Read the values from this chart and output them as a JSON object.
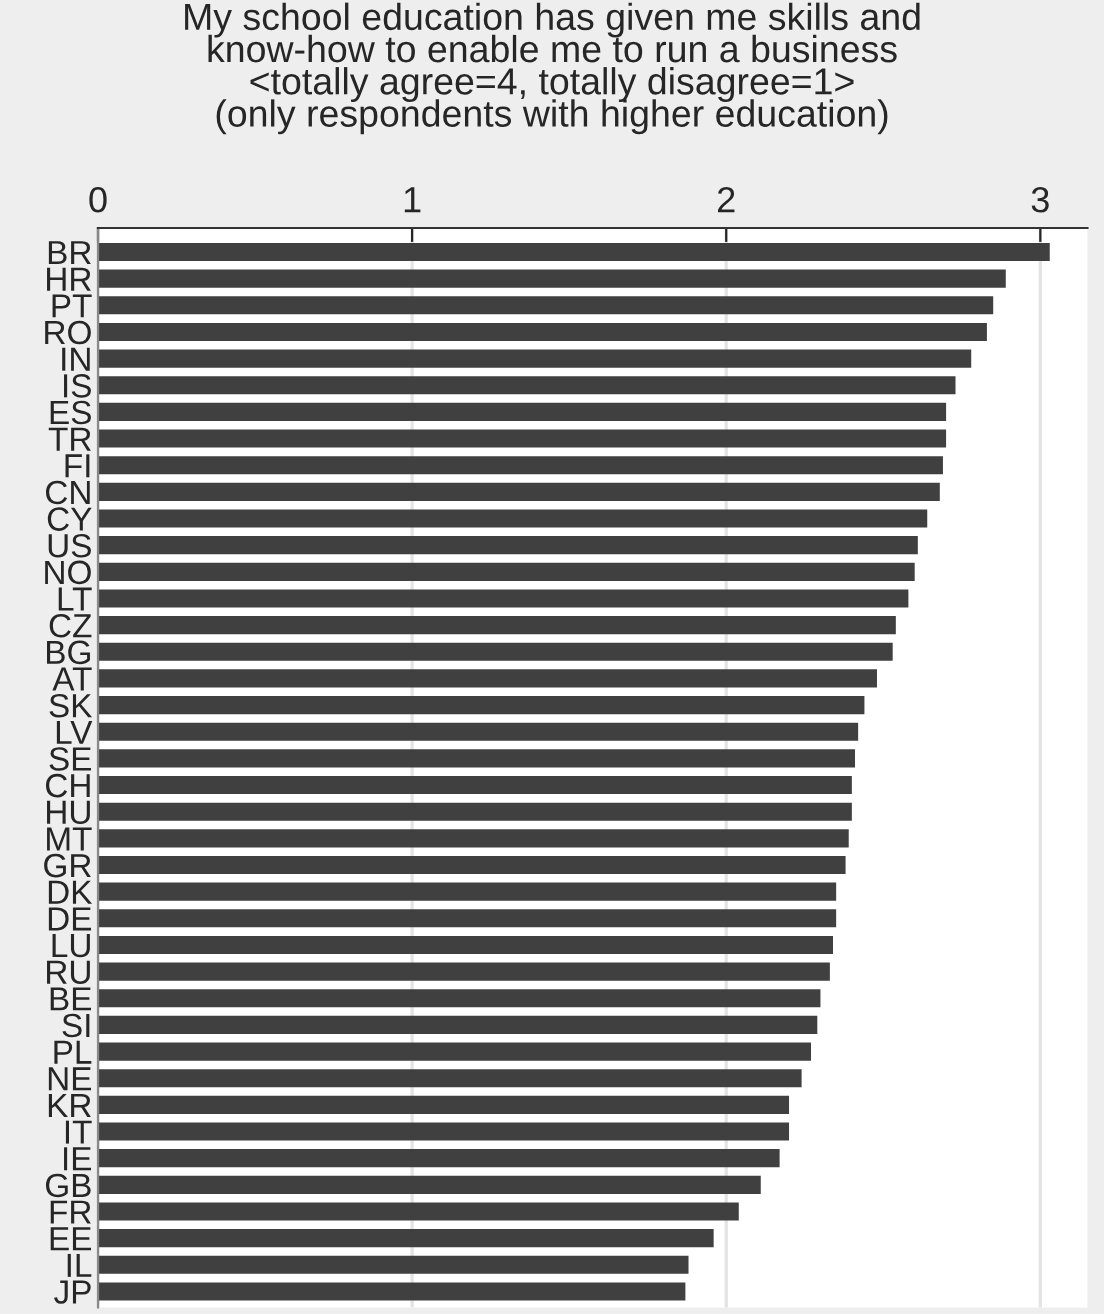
{
  "chart_data": {
    "type": "bar",
    "orientation": "horizontal",
    "title": "My school education has given me skills and\nknow-how to enable me to run a business\n<totally agree=4, totally disagree=1>\n(only respondents with higher education)",
    "categories": [
      "BR",
      "HR",
      "PT",
      "RO",
      "IN",
      "IS",
      "ES",
      "TR",
      "FI",
      "CN",
      "CY",
      "US",
      "NO",
      "LT",
      "CZ",
      "BG",
      "AT",
      "SK",
      "LV",
      "SE",
      "CH",
      "HU",
      "MT",
      "GR",
      "DK",
      "DE",
      "LU",
      "RU",
      "BE",
      "SI",
      "PL",
      "NE",
      "KR",
      "IT",
      "IE",
      "GB",
      "FR",
      "EE",
      "IL",
      "JP"
    ],
    "values": [
      3.03,
      2.89,
      2.85,
      2.83,
      2.78,
      2.73,
      2.7,
      2.7,
      2.69,
      2.68,
      2.64,
      2.61,
      2.6,
      2.58,
      2.54,
      2.53,
      2.48,
      2.44,
      2.42,
      2.41,
      2.4,
      2.4,
      2.39,
      2.38,
      2.35,
      2.35,
      2.34,
      2.33,
      2.3,
      2.29,
      2.27,
      2.24,
      2.2,
      2.2,
      2.17,
      2.11,
      2.04,
      1.96,
      1.88,
      1.87
    ],
    "color": "#404040",
    "xlim": [
      0,
      3.15
    ],
    "xticks": [
      0,
      1,
      2,
      3
    ],
    "grid": "x",
    "legend": false
  }
}
